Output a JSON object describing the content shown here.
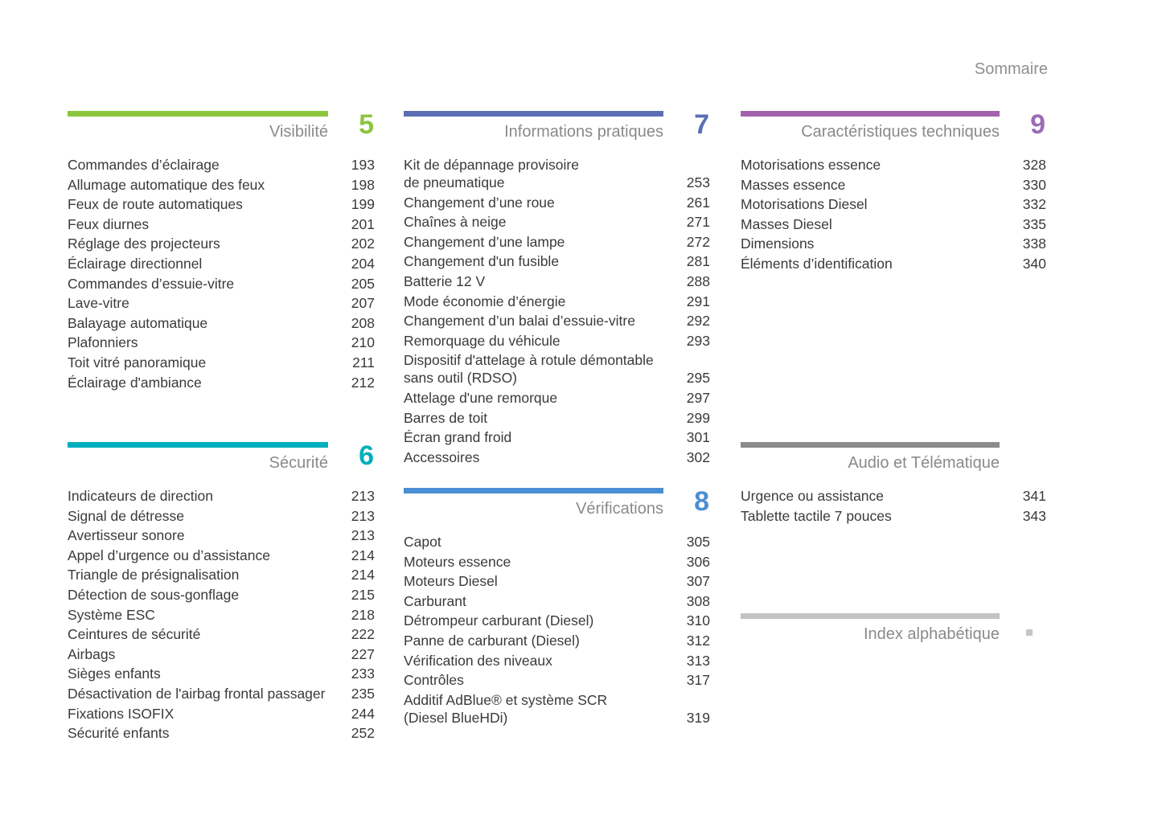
{
  "page_title": "Sommaire",
  "sections": [
    {
      "id": "visibilite",
      "title": "Visibilité",
      "number": "5",
      "accent": "#8CC63F",
      "number_color": "#8CC63F",
      "items": [
        {
          "label": "Commandes d’éclairage",
          "page": "193"
        },
        {
          "label": "Allumage automatique des feux",
          "page": "198"
        },
        {
          "label": "Feux de route automatiques",
          "page": "199"
        },
        {
          "label": "Feux diurnes",
          "page": "201"
        },
        {
          "label": "Réglage des projecteurs",
          "page": "202"
        },
        {
          "label": "Éclairage directionnel",
          "page": "204"
        },
        {
          "label": "Commandes d’essuie-vitre",
          "page": "205"
        },
        {
          "label": "Lave-vitre",
          "page": "207"
        },
        {
          "label": "Balayage automatique",
          "page": "208"
        },
        {
          "label": "Plafonniers",
          "page": "210"
        },
        {
          "label": "Toit vitré panoramique",
          "page": "211"
        },
        {
          "label": "Éclairage d'ambiance",
          "page": "212"
        }
      ]
    },
    {
      "id": "securite",
      "title": "Sécurité",
      "number": "6",
      "accent": "#00AEBD",
      "number_color": "#00AEBD",
      "items": [
        {
          "label": "Indicateurs de direction",
          "page": "213"
        },
        {
          "label": "Signal de détresse",
          "page": "213"
        },
        {
          "label": "Avertisseur sonore",
          "page": "213"
        },
        {
          "label": "Appel d’urgence ou d’assistance",
          "page": "214"
        },
        {
          "label": "Triangle de présignalisation",
          "page": "214"
        },
        {
          "label": "Détection de sous-gonflage",
          "page": "215"
        },
        {
          "label": "Système ESC",
          "page": "218"
        },
        {
          "label": "Ceintures de sécurité",
          "page": "222"
        },
        {
          "label": "Airbags",
          "page": "227"
        },
        {
          "label": "Sièges enfants",
          "page": "233"
        },
        {
          "label": "Désactivation de l'airbag frontal passager",
          "page": "235"
        },
        {
          "label": "Fixations ISOFIX",
          "page": "244"
        },
        {
          "label": "Sécurité enfants",
          "page": "252"
        }
      ]
    },
    {
      "id": "informations-pratiques",
      "title": "Informations pratiques",
      "number": "7",
      "accent": "#5B6EB5",
      "number_color": "#5B6EB5",
      "items": [
        {
          "label": "Kit de dépannage provisoire\nde pneumatique",
          "page": "253"
        },
        {
          "label": "Changement d’une roue",
          "page": "261"
        },
        {
          "label": "Chaînes à neige",
          "page": "271"
        },
        {
          "label": "Changement d’une lampe",
          "page": "272"
        },
        {
          "label": "Changement d'un fusible",
          "page": "281"
        },
        {
          "label": "Batterie 12 V",
          "page": "288"
        },
        {
          "label": "Mode économie d’énergie",
          "page": "291"
        },
        {
          "label": "Changement d’un balai d’essuie-vitre",
          "page": "292"
        },
        {
          "label": "Remorquage du véhicule",
          "page": "293"
        },
        {
          "label": "Dispositif d'attelage à rotule démontable\nsans outil (RDSO)",
          "page": "295"
        },
        {
          "label": "Attelage d'une remorque",
          "page": "297"
        },
        {
          "label": "Barres de toit",
          "page": "299"
        },
        {
          "label": "Écran grand froid",
          "page": "301"
        },
        {
          "label": "Accessoires",
          "page": "302"
        }
      ]
    },
    {
      "id": "verifications",
      "title": "Vérifications",
      "number": "8",
      "accent": "#4A8FD4",
      "number_color": "#4A8FD4",
      "items": [
        {
          "label": "Capot",
          "page": "305"
        },
        {
          "label": "Moteurs essence",
          "page": "306"
        },
        {
          "label": "Moteurs Diesel",
          "page": "307"
        },
        {
          "label": "Carburant",
          "page": "308"
        },
        {
          "label": "Détrompeur carburant (Diesel)",
          "page": "310"
        },
        {
          "label": "Panne de carburant (Diesel)",
          "page": "312"
        },
        {
          "label": "Vérification des niveaux",
          "page": "313"
        },
        {
          "label": "Contrôles",
          "page": "317"
        },
        {
          "label": "Additif AdBlue® et système SCR\n(Diesel BlueHDi)",
          "page": "319"
        }
      ]
    },
    {
      "id": "caracteristiques-techniques",
      "title": "Caractéristiques techniques",
      "number": "9",
      "accent": "#A263AC",
      "number_color": "#9C6BB4",
      "items": [
        {
          "label": "Motorisations essence",
          "page": "328"
        },
        {
          "label": "Masses essence",
          "page": "330"
        },
        {
          "label": "Motorisations Diesel",
          "page": "332"
        },
        {
          "label": "Masses Diesel",
          "page": "335"
        },
        {
          "label": "Dimensions",
          "page": "338"
        },
        {
          "label": "Éléments d’identification",
          "page": "340"
        }
      ]
    },
    {
      "id": "audio-telematique",
      "title": "Audio et Télématique",
      "number": null,
      "accent": "#8B8B8B",
      "number_color": "#8B8B8B",
      "items": [
        {
          "label": "Urgence ou assistance",
          "page": "341"
        },
        {
          "label": "Tablette tactile 7 pouces",
          "page": "343"
        }
      ]
    },
    {
      "id": "index-alphabetique",
      "title": "Index alphabétique",
      "number": null,
      "accent": "#C3C3C3",
      "number_color": "#C3C3C3",
      "items": []
    }
  ]
}
